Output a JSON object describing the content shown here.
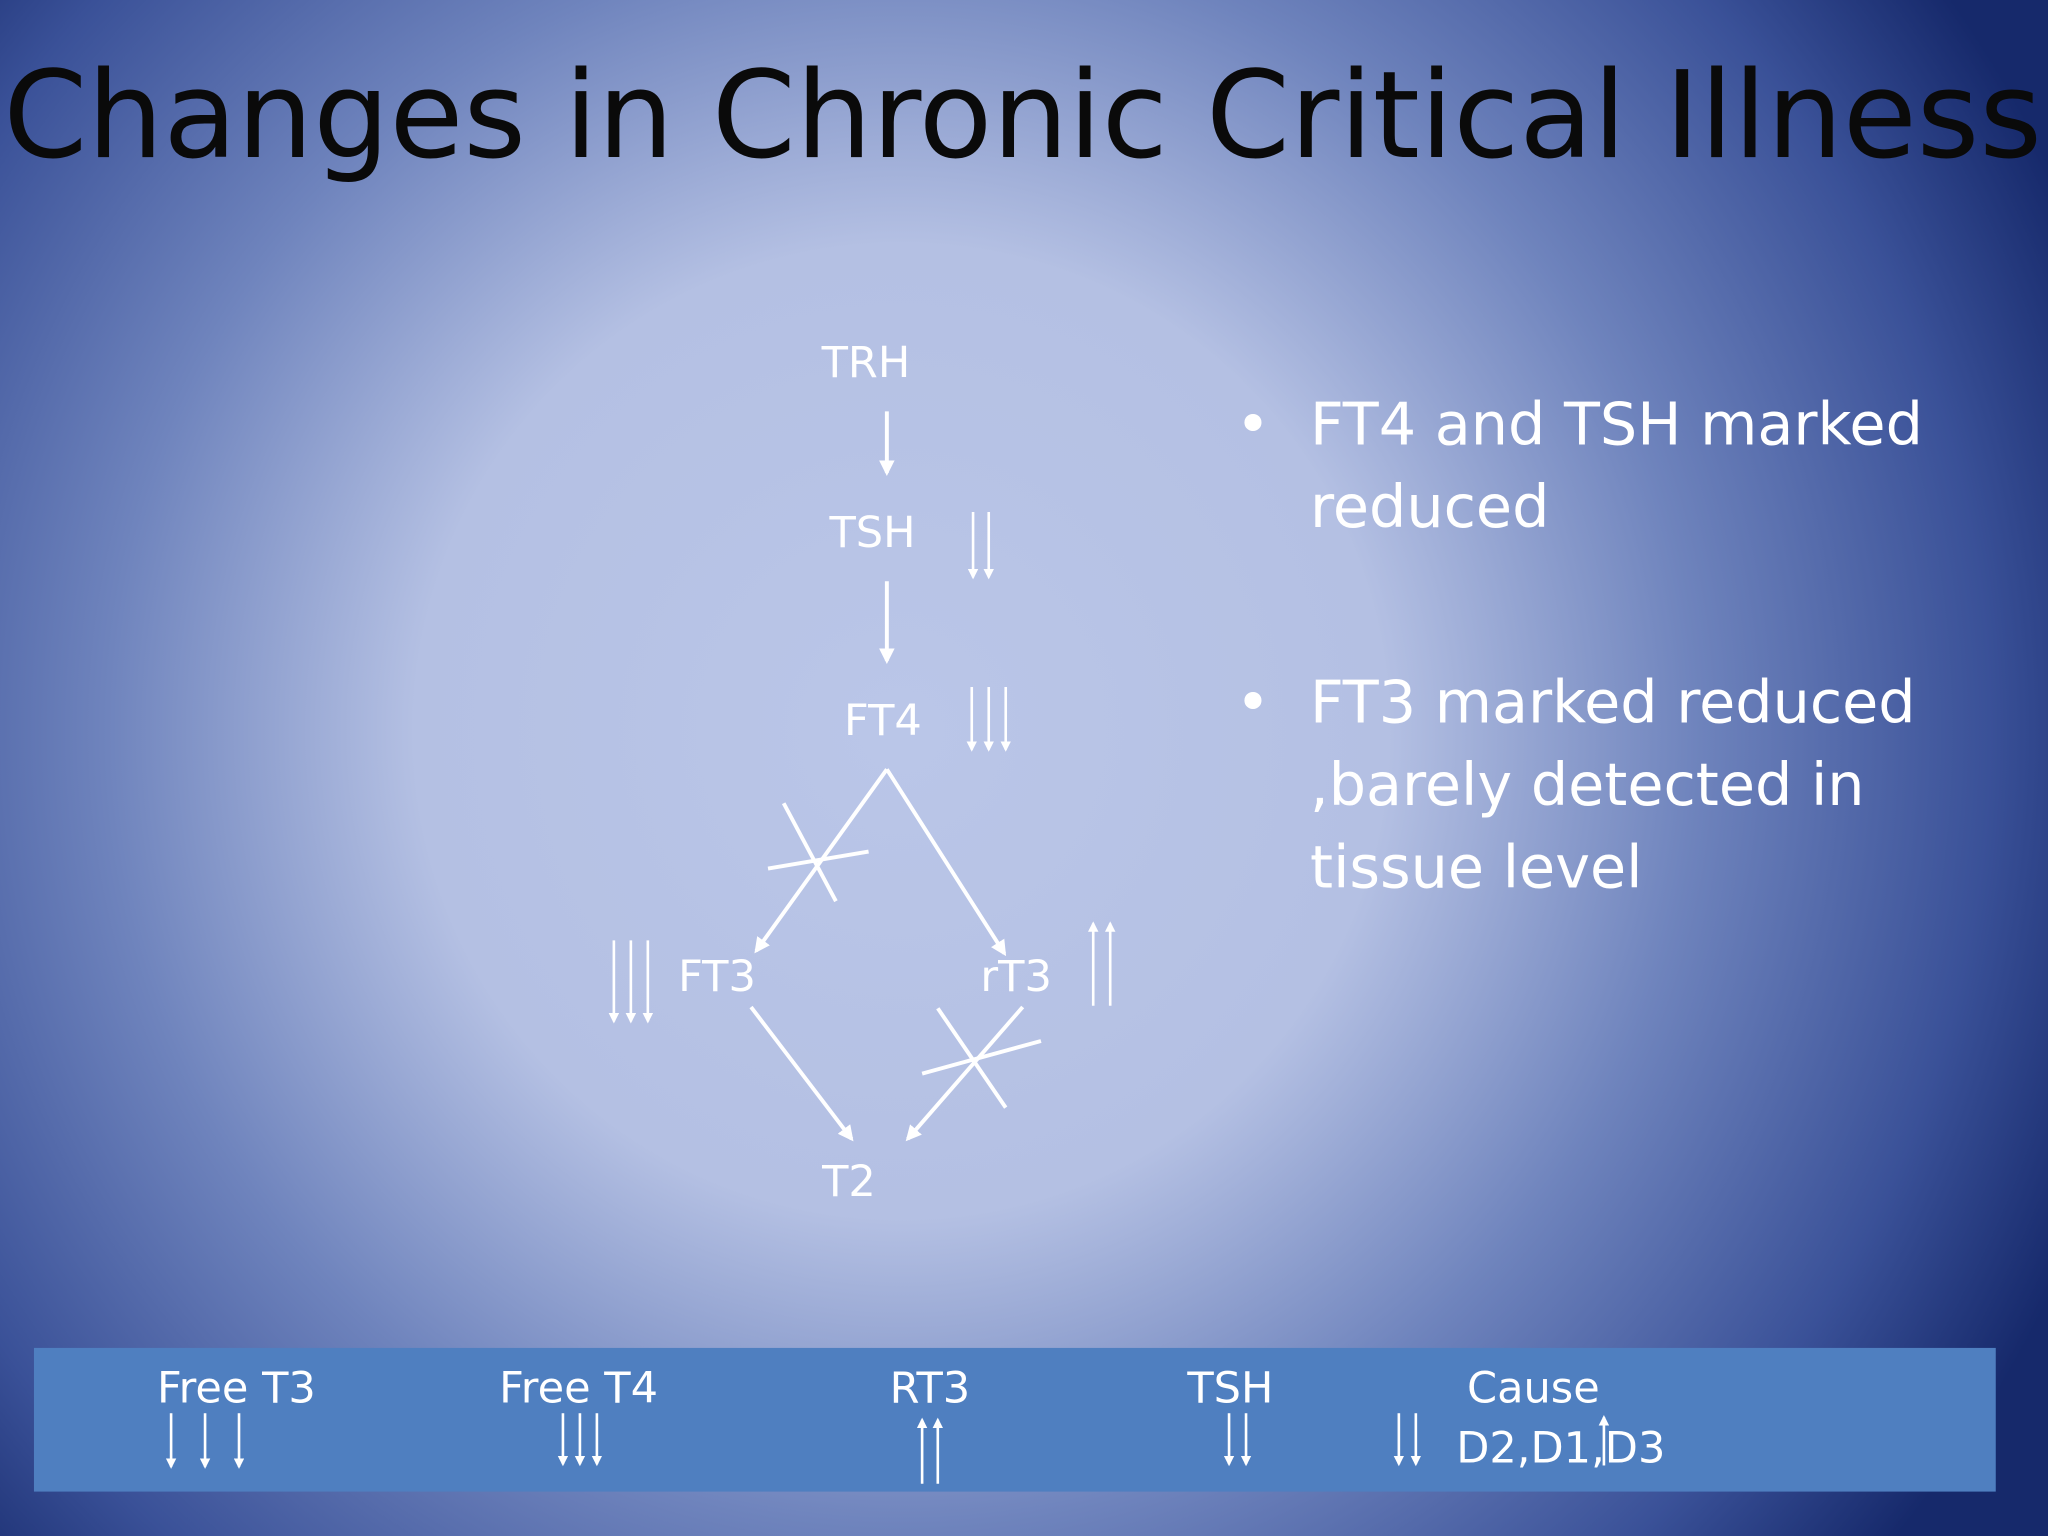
{
  "slide": {
    "title": "Changes in Chronic Critical Illness",
    "nodes": [
      {
        "label": "TRH"
      },
      {
        "label": "TSH"
      },
      {
        "label": "FT4"
      },
      {
        "label": "FT3"
      },
      {
        "label": "rT3"
      },
      {
        "label": "T2"
      }
    ],
    "bullets": [
      {
        "lines": [
          "FT4 and TSH marked",
          "reduced"
        ]
      },
      {
        "lines": [
          "FT3 marked reduced",
          ",barely detected in",
          "tissue level"
        ]
      }
    ],
    "bullet_symbol": "•",
    "table": {
      "headers": [
        "Free T3",
        "Free T4",
        "RT3",
        "TSH",
        "Cause"
      ],
      "cause_text": "D2,D1,D3"
    }
  }
}
